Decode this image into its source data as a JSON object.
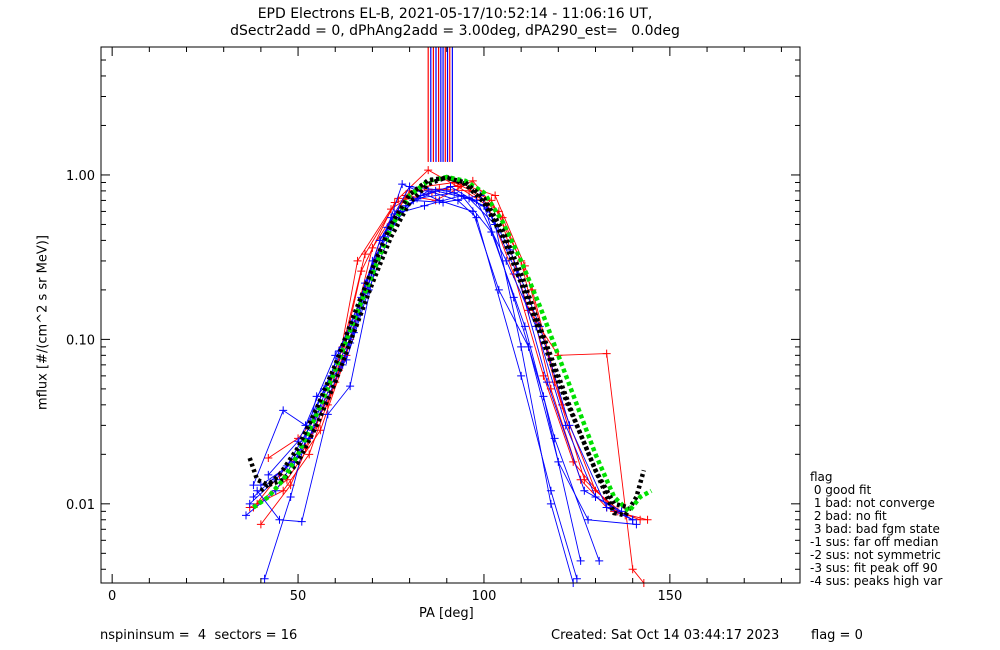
{
  "title_line1": "EPD Electrons EL-B, 2021-05-17/10:52:14 - 11:06:16 UT,",
  "title_line2": "dSectr2add = 0, dPhAng2add = 3.00deg, dPA290_est=   0.0deg",
  "footer": {
    "left": "nspininsum =  4  sectors = 16",
    "created": "Created: Sat Oct 14 03:44:17 2023",
    "flag": "flag = 0"
  },
  "legend": {
    "title": "flag",
    "items": [
      " 0 good fit",
      " 1 bad: not converge",
      " 2 bad: no fit",
      " 3 bad: bad fgm state",
      "-1 sus: far off median",
      "-2 sus: not symmetric",
      "-3 sus: fit peak off 90",
      "-4 sus: peaks high var"
    ]
  },
  "colors": {
    "red": "#ff0000",
    "blue": "#0000ff",
    "black": "#000000",
    "green": "#00e000"
  },
  "chart_data": {
    "type": "line",
    "xlabel": "PA [deg]",
    "ylabel": "mflux [#/(cm^2 s sr MeV)]",
    "xlim": [
      -3,
      185
    ],
    "ylim": [
      0.0033,
      6.0
    ],
    "y_scale": "log",
    "x_ticks": [
      0,
      50,
      100,
      150
    ],
    "y_ticks": [
      0.01,
      0.1,
      1.0
    ],
    "y_tick_labels": [
      "0.01",
      "0.10",
      "1.00"
    ],
    "grid": false,
    "series": [
      {
        "color": "red",
        "points": [
          [
            38,
            0.0095
          ],
          [
            45,
            0.015
          ],
          [
            52,
            0.022
          ],
          [
            60,
            0.055
          ],
          [
            66,
            0.3
          ],
          [
            75,
            0.62
          ],
          [
            84,
            0.85
          ],
          [
            92,
            0.9
          ],
          [
            102,
            0.7
          ],
          [
            110,
            0.3
          ],
          [
            118,
            0.05
          ],
          [
            126,
            0.014
          ],
          [
            133,
            0.0095
          ],
          [
            142,
            0.008
          ]
        ]
      },
      {
        "color": "red",
        "points": [
          [
            40,
            0.0075
          ],
          [
            48,
            0.013
          ],
          [
            55,
            0.03
          ],
          [
            62,
            0.09
          ],
          [
            68,
            0.33
          ],
          [
            77,
            0.72
          ],
          [
            85,
            1.07
          ],
          [
            93,
            0.85
          ],
          [
            101,
            0.65
          ],
          [
            108,
            0.25
          ],
          [
            116,
            0.06
          ],
          [
            124,
            0.018
          ],
          [
            135,
            0.009
          ],
          [
            144,
            0.008
          ]
        ]
      },
      {
        "color": "red",
        "points": [
          [
            42,
            0.019
          ],
          [
            50,
            0.025
          ],
          [
            58,
            0.04
          ],
          [
            64,
            0.1
          ],
          [
            72,
            0.4
          ],
          [
            80,
            0.8
          ],
          [
            88,
            0.82
          ],
          [
            96,
            0.8
          ],
          [
            104,
            0.6
          ],
          [
            112,
            0.15
          ],
          [
            120,
            0.08
          ],
          [
            133,
            0.082
          ],
          [
            140,
            0.004
          ],
          [
            143,
            0.0033
          ]
        ]
      },
      {
        "color": "red",
        "points": [
          [
            37,
            0.0095
          ],
          [
            46,
            0.012
          ],
          [
            53,
            0.02
          ],
          [
            61,
            0.065
          ],
          [
            67,
            0.26
          ],
          [
            76,
            0.68
          ],
          [
            86,
            0.78
          ],
          [
            94,
            0.88
          ],
          [
            103,
            0.75
          ],
          [
            111,
            0.28
          ],
          [
            119,
            0.055
          ],
          [
            127,
            0.014
          ],
          [
            136,
            0.009
          ]
        ]
      },
      {
        "color": "red",
        "points": [
          [
            39,
            0.01
          ],
          [
            47,
            0.014
          ],
          [
            56,
            0.028
          ],
          [
            63,
            0.08
          ],
          [
            70,
            0.36
          ],
          [
            79,
            0.75
          ],
          [
            87,
            0.7
          ],
          [
            97,
            0.92
          ],
          [
            105,
            0.55
          ],
          [
            113,
            0.2
          ],
          [
            121,
            0.04
          ],
          [
            130,
            0.012
          ],
          [
            138,
            0.0085
          ]
        ]
      },
      {
        "color": "blue",
        "points": [
          [
            36,
            0.0085
          ],
          [
            44,
            0.012
          ],
          [
            50,
            0.02
          ],
          [
            57,
            0.05
          ],
          [
            63,
            0.1
          ],
          [
            72,
            0.4
          ],
          [
            80,
            0.85
          ],
          [
            90,
            0.8
          ],
          [
            98,
            0.7
          ],
          [
            106,
            0.3
          ],
          [
            114,
            0.12
          ],
          [
            122,
            0.03
          ],
          [
            130,
            0.011
          ],
          [
            140,
            0.008
          ]
        ]
      },
      {
        "color": "blue",
        "points": [
          [
            38,
            0.013
          ],
          [
            46,
            0.037
          ],
          [
            52,
            0.03
          ],
          [
            60,
            0.08
          ],
          [
            66,
            0.14
          ],
          [
            74,
            0.48
          ],
          [
            82,
            0.72
          ],
          [
            92,
            0.78
          ],
          [
            100,
            0.65
          ],
          [
            108,
            0.18
          ],
          [
            116,
            0.045
          ],
          [
            126,
            0.0045
          ]
        ]
      },
      {
        "color": "blue",
        "points": [
          [
            41,
            0.0035
          ],
          [
            48,
            0.011
          ],
          [
            55,
            0.045
          ],
          [
            63,
            0.075
          ],
          [
            69,
            0.2
          ],
          [
            77,
            0.6
          ],
          [
            85,
            0.8
          ],
          [
            93,
            0.7
          ],
          [
            98,
            0.55
          ],
          [
            110,
            0.06
          ],
          [
            118,
            0.012
          ],
          [
            125,
            0.0035
          ]
        ]
      },
      {
        "color": "blue",
        "points": [
          [
            39,
            0.012
          ],
          [
            45,
            0.008
          ],
          [
            51,
            0.0078
          ],
          [
            58,
            0.035
          ],
          [
            64,
            0.052
          ],
          [
            71,
            0.3
          ],
          [
            78,
            0.88
          ],
          [
            88,
            0.7
          ],
          [
            97,
            0.6
          ],
          [
            104,
            0.2
          ],
          [
            112,
            0.09
          ],
          [
            120,
            0.018
          ],
          [
            128,
            0.008
          ],
          [
            141,
            0.0075
          ]
        ]
      },
      {
        "color": "blue",
        "points": [
          [
            37,
            0.01
          ],
          [
            44,
            0.014
          ],
          [
            53,
            0.025
          ],
          [
            61,
            0.085
          ],
          [
            67,
            0.18
          ],
          [
            75,
            0.55
          ],
          [
            83,
            0.75
          ],
          [
            91,
            0.85
          ],
          [
            101,
            0.62
          ],
          [
            109,
            0.25
          ],
          [
            117,
            0.055
          ],
          [
            127,
            0.012
          ],
          [
            137,
            0.009
          ]
        ]
      },
      {
        "color": "blue",
        "points": [
          [
            40,
            0.013
          ],
          [
            49,
            0.018
          ],
          [
            54,
            0.028
          ],
          [
            62,
            0.07
          ],
          [
            68,
            0.22
          ],
          [
            76,
            0.58
          ],
          [
            84,
            0.65
          ],
          [
            94,
            0.75
          ],
          [
            102,
            0.45
          ],
          [
            111,
            0.12
          ],
          [
            119,
            0.025
          ],
          [
            131,
            0.0045
          ]
        ]
      },
      {
        "color": "blue",
        "points": [
          [
            42,
            0.015
          ],
          [
            50,
            0.024
          ],
          [
            59,
            0.06
          ],
          [
            65,
            0.11
          ],
          [
            73,
            0.42
          ],
          [
            81,
            0.7
          ],
          [
            89,
            0.68
          ],
          [
            99,
            0.75
          ],
          [
            107,
            0.35
          ],
          [
            115,
            0.12
          ],
          [
            123,
            0.03
          ],
          [
            133,
            0.0095
          ],
          [
            140,
            0.008
          ]
        ]
      },
      {
        "color": "blue",
        "points": [
          [
            38,
            0.011
          ],
          [
            47,
            0.017
          ],
          [
            56,
            0.038
          ],
          [
            64,
            0.095
          ],
          [
            70,
            0.3
          ],
          [
            79,
            0.65
          ],
          [
            87,
            0.8
          ],
          [
            96,
            0.72
          ],
          [
            103,
            0.5
          ],
          [
            110,
            0.09
          ],
          [
            118,
            0.01
          ],
          [
            124,
            0.0033
          ]
        ]
      },
      {
        "color": "black",
        "style": "fit",
        "points": [
          [
            37,
            0.019
          ],
          [
            39,
            0.014
          ],
          [
            42,
            0.013
          ],
          [
            46,
            0.014
          ],
          [
            50,
            0.018
          ],
          [
            55,
            0.03
          ],
          [
            60,
            0.055
          ],
          [
            65,
            0.11
          ],
          [
            70,
            0.22
          ],
          [
            75,
            0.42
          ],
          [
            80,
            0.68
          ],
          [
            85,
            0.88
          ],
          [
            90,
            0.97
          ],
          [
            95,
            0.88
          ],
          [
            100,
            0.68
          ],
          [
            105,
            0.42
          ],
          [
            110,
            0.22
          ],
          [
            115,
            0.11
          ],
          [
            120,
            0.055
          ],
          [
            125,
            0.03
          ],
          [
            130,
            0.016
          ],
          [
            135,
            0.0088
          ],
          [
            138,
            0.0085
          ],
          [
            141,
            0.011
          ],
          [
            143,
            0.016
          ]
        ]
      },
      {
        "color": "green",
        "style": "fit",
        "points": [
          [
            38,
            0.0095
          ],
          [
            42,
            0.011
          ],
          [
            46,
            0.014
          ],
          [
            50,
            0.02
          ],
          [
            55,
            0.035
          ],
          [
            60,
            0.065
          ],
          [
            65,
            0.13
          ],
          [
            70,
            0.25
          ],
          [
            75,
            0.48
          ],
          [
            80,
            0.75
          ],
          [
            85,
            0.92
          ],
          [
            90,
            0.97
          ],
          [
            95,
            0.92
          ],
          [
            100,
            0.78
          ],
          [
            105,
            0.52
          ],
          [
            110,
            0.3
          ],
          [
            115,
            0.16
          ],
          [
            120,
            0.08
          ],
          [
            125,
            0.04
          ],
          [
            130,
            0.02
          ],
          [
            135,
            0.011
          ],
          [
            139,
            0.009
          ],
          [
            142,
            0.011
          ],
          [
            145,
            0.012
          ]
        ]
      },
      {
        "color": "black",
        "style": "fit",
        "points": [
          [
            40,
            0.012
          ],
          [
            45,
            0.015
          ],
          [
            50,
            0.022
          ],
          [
            55,
            0.038
          ],
          [
            60,
            0.07
          ],
          [
            65,
            0.14
          ],
          [
            70,
            0.27
          ],
          [
            75,
            0.5
          ],
          [
            80,
            0.76
          ],
          [
            85,
            0.93
          ],
          [
            90,
            0.96
          ],
          [
            95,
            0.9
          ],
          [
            100,
            0.72
          ],
          [
            105,
            0.46
          ],
          [
            110,
            0.25
          ],
          [
            115,
            0.12
          ],
          [
            120,
            0.06
          ],
          [
            125,
            0.03
          ],
          [
            130,
            0.016
          ],
          [
            135,
            0.01
          ],
          [
            139,
            0.0095
          ]
        ]
      }
    ],
    "vertical_lines": [
      {
        "x": 85.0,
        "color": "red"
      },
      {
        "x": 85.7,
        "color": "blue"
      },
      {
        "x": 86.4,
        "color": "red"
      },
      {
        "x": 87.1,
        "color": "blue"
      },
      {
        "x": 87.8,
        "color": "red"
      },
      {
        "x": 88.4,
        "color": "blue"
      },
      {
        "x": 89.0,
        "color": "blue"
      },
      {
        "x": 89.6,
        "color": "red"
      },
      {
        "x": 90.2,
        "color": "blue"
      },
      {
        "x": 90.8,
        "color": "red"
      },
      {
        "x": 91.5,
        "color": "blue"
      }
    ],
    "vertical_lines_yrange": [
      1.2,
      6.0
    ]
  }
}
